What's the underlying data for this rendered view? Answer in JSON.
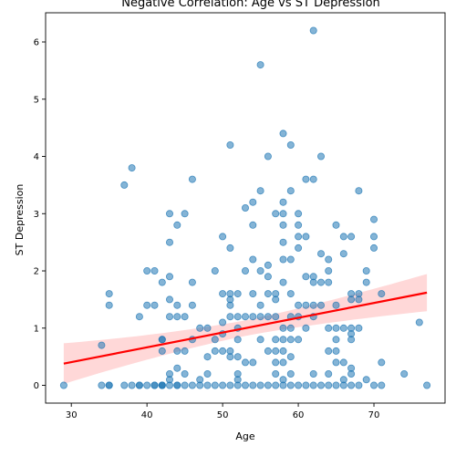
{
  "chart_data": {
    "type": "scatter",
    "title": "Negative Correlation: Age vs ST Depression",
    "xlabel": "Age",
    "ylabel": "ST Depression",
    "xlim": [
      26.6,
      79.4
    ],
    "ylim": [
      -0.31,
      6.51
    ],
    "xticks": [
      30,
      40,
      50,
      60,
      70
    ],
    "yticks": [
      0,
      1,
      2,
      3,
      4,
      5,
      6
    ],
    "grid": false,
    "colors": {
      "points": "#1f77b4",
      "regression_line": "#ff0000",
      "confidence_band": "#ff9999"
    },
    "points": [
      [
        29,
        0
      ],
      [
        34,
        0
      ],
      [
        34,
        0.7
      ],
      [
        35,
        0
      ],
      [
        35,
        0
      ],
      [
        35,
        1.4
      ],
      [
        35,
        1.6
      ],
      [
        37,
        0
      ],
      [
        37,
        3.5
      ],
      [
        38,
        0
      ],
      [
        38,
        3.8
      ],
      [
        39,
        0
      ],
      [
        39,
        0
      ],
      [
        39,
        1.2
      ],
      [
        40,
        0
      ],
      [
        40,
        1.4
      ],
      [
        40,
        2.0
      ],
      [
        41,
        0
      ],
      [
        41,
        0
      ],
      [
        41,
        1.4
      ],
      [
        41,
        2.0
      ],
      [
        42,
        0
      ],
      [
        42,
        0
      ],
      [
        42,
        0
      ],
      [
        42,
        0.6
      ],
      [
        42,
        0.8
      ],
      [
        42,
        0.8
      ],
      [
        42,
        1.8
      ],
      [
        43,
        0
      ],
      [
        43,
        0.1
      ],
      [
        43,
        0.2
      ],
      [
        43,
        1.2
      ],
      [
        43,
        1.5
      ],
      [
        43,
        1.9
      ],
      [
        43,
        2.5
      ],
      [
        43,
        3.0
      ],
      [
        44,
        0
      ],
      [
        44,
        0
      ],
      [
        44,
        0.3
      ],
      [
        44,
        0.6
      ],
      [
        44,
        1.2
      ],
      [
        44,
        1.4
      ],
      [
        44,
        2.8
      ],
      [
        45,
        0
      ],
      [
        45,
        0.2
      ],
      [
        45,
        0.6
      ],
      [
        45,
        1.2
      ],
      [
        45,
        3.0
      ],
      [
        46,
        0
      ],
      [
        46,
        0.8
      ],
      [
        46,
        1.4
      ],
      [
        46,
        1.8
      ],
      [
        46,
        3.6
      ],
      [
        47,
        0
      ],
      [
        47,
        0.1
      ],
      [
        47,
        1.0
      ],
      [
        48,
        0
      ],
      [
        48,
        0.2
      ],
      [
        48,
        0.5
      ],
      [
        48,
        1.0
      ],
      [
        49,
        0
      ],
      [
        49,
        0.6
      ],
      [
        49,
        0.8
      ],
      [
        49,
        2.0
      ],
      [
        50,
        0
      ],
      [
        50,
        0.6
      ],
      [
        50,
        0.9
      ],
      [
        50,
        1.1
      ],
      [
        50,
        1.6
      ],
      [
        50,
        2.6
      ],
      [
        51,
        0
      ],
      [
        51,
        0.5
      ],
      [
        51,
        0.6
      ],
      [
        51,
        1.2
      ],
      [
        51,
        1.4
      ],
      [
        51,
        1.5
      ],
      [
        51,
        1.6
      ],
      [
        51,
        2.4
      ],
      [
        51,
        4.2
      ],
      [
        52,
        0
      ],
      [
        52,
        0.1
      ],
      [
        52,
        0.2
      ],
      [
        52,
        0.5
      ],
      [
        52,
        0.8
      ],
      [
        52,
        1.0
      ],
      [
        52,
        1.2
      ],
      [
        52,
        1.6
      ],
      [
        53,
        0
      ],
      [
        53,
        0.4
      ],
      [
        53,
        1.2
      ],
      [
        53,
        2.0
      ],
      [
        53,
        3.1
      ],
      [
        54,
        0
      ],
      [
        54,
        0.4
      ],
      [
        54,
        1.2
      ],
      [
        54,
        1.6
      ],
      [
        54,
        2.2
      ],
      [
        54,
        2.8
      ],
      [
        54,
        3.2
      ],
      [
        55,
        0
      ],
      [
        55,
        0.8
      ],
      [
        55,
        1.2
      ],
      [
        55,
        1.4
      ],
      [
        55,
        2.0
      ],
      [
        55,
        3.4
      ],
      [
        55,
        5.6
      ],
      [
        56,
        0
      ],
      [
        56,
        0.6
      ],
      [
        56,
        1.2
      ],
      [
        56,
        1.6
      ],
      [
        56,
        1.9
      ],
      [
        56,
        2.1
      ],
      [
        56,
        4.0
      ],
      [
        57,
        0
      ],
      [
        57,
        0.2
      ],
      [
        57,
        0.4
      ],
      [
        57,
        0.6
      ],
      [
        57,
        0.8
      ],
      [
        57,
        1.2
      ],
      [
        57,
        1.5
      ],
      [
        57,
        1.6
      ],
      [
        57,
        3.0
      ],
      [
        58,
        0
      ],
      [
        58,
        0.1
      ],
      [
        58,
        0.4
      ],
      [
        58,
        0.6
      ],
      [
        58,
        0.8
      ],
      [
        58,
        1.0
      ],
      [
        58,
        1.8
      ],
      [
        58,
        2.2
      ],
      [
        58,
        2.5
      ],
      [
        58,
        2.8
      ],
      [
        58,
        3.0
      ],
      [
        58,
        3.2
      ],
      [
        58,
        4.4
      ],
      [
        59,
        0
      ],
      [
        59,
        0.2
      ],
      [
        59,
        0.5
      ],
      [
        59,
        0.8
      ],
      [
        59,
        1.0
      ],
      [
        59,
        1.2
      ],
      [
        59,
        1.6
      ],
      [
        59,
        2.2
      ],
      [
        59,
        3.4
      ],
      [
        59,
        4.2
      ],
      [
        60,
        0
      ],
      [
        60,
        0.8
      ],
      [
        60,
        1.2
      ],
      [
        60,
        1.4
      ],
      [
        60,
        2.4
      ],
      [
        60,
        2.6
      ],
      [
        60,
        2.8
      ],
      [
        60,
        3.0
      ],
      [
        61,
        0
      ],
      [
        61,
        1.0
      ],
      [
        61,
        1.4
      ],
      [
        61,
        1.9
      ],
      [
        61,
        2.6
      ],
      [
        61,
        3.6
      ],
      [
        62,
        0
      ],
      [
        62,
        0.2
      ],
      [
        62,
        1.2
      ],
      [
        62,
        1.4
      ],
      [
        62,
        1.8
      ],
      [
        62,
        1.9
      ],
      [
        62,
        3.6
      ],
      [
        62,
        6.2
      ],
      [
        63,
        0
      ],
      [
        63,
        1.4
      ],
      [
        63,
        1.8
      ],
      [
        63,
        2.3
      ],
      [
        63,
        4.0
      ],
      [
        64,
        0
      ],
      [
        64,
        0.2
      ],
      [
        64,
        0.6
      ],
      [
        64,
        1.0
      ],
      [
        64,
        1.8
      ],
      [
        64,
        2.0
      ],
      [
        64,
        2.2
      ],
      [
        65,
        0
      ],
      [
        65,
        0.4
      ],
      [
        65,
        0.6
      ],
      [
        65,
        0.8
      ],
      [
        65,
        1.0
      ],
      [
        65,
        1.4
      ],
      [
        65,
        2.8
      ],
      [
        66,
        0
      ],
      [
        66,
        0.1
      ],
      [
        66,
        0.4
      ],
      [
        66,
        1.0
      ],
      [
        66,
        2.3
      ],
      [
        66,
        2.6
      ],
      [
        67,
        0
      ],
      [
        67,
        0.2
      ],
      [
        67,
        0.3
      ],
      [
        67,
        0.8
      ],
      [
        67,
        0.9
      ],
      [
        67,
        1.0
      ],
      [
        67,
        1.5
      ],
      [
        67,
        1.6
      ],
      [
        67,
        2.6
      ],
      [
        68,
        0
      ],
      [
        68,
        1.0
      ],
      [
        68,
        1.5
      ],
      [
        68,
        1.6
      ],
      [
        68,
        3.4
      ],
      [
        69,
        0.1
      ],
      [
        69,
        1.8
      ],
      [
        69,
        2.0
      ],
      [
        70,
        0
      ],
      [
        70,
        2.4
      ],
      [
        70,
        2.6
      ],
      [
        70,
        2.9
      ],
      [
        71,
        0
      ],
      [
        71,
        0.4
      ],
      [
        71,
        1.6
      ],
      [
        74,
        0.2
      ],
      [
        76,
        1.1
      ],
      [
        77,
        0
      ]
    ],
    "regression": {
      "x": [
        29,
        77
      ],
      "y": [
        0.38,
        1.62
      ],
      "ci_lower": [
        0.02,
        1.3
      ],
      "ci_upper": [
        0.73,
        1.95
      ]
    }
  }
}
